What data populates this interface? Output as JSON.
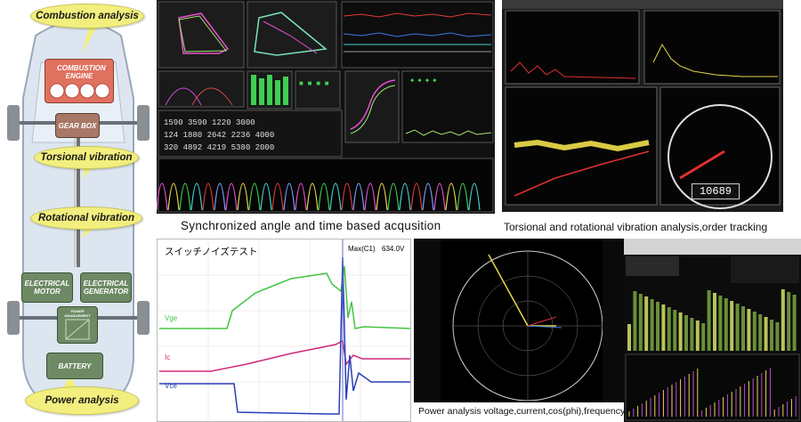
{
  "callouts": {
    "combustion": "Combustion analysis",
    "torsional": "Torsional vibration",
    "rotational": "Rotational vibration",
    "power": "Power analysis"
  },
  "blocks": {
    "engine": "COMBUSTION ENGINE",
    "gearbox": "GEAR BOX",
    "motor": "ELECTRICAL MOTOR",
    "generator": "ELECTRICAL GENERATOR",
    "power_mgmt": "POWER MANAGEMENT",
    "battery": "BATTERY"
  },
  "captions": {
    "sync": "Synchronized angle and time based acqusition",
    "torsional": "Torsional and rotational vibration analysis,order tracking",
    "power": "Power analysis voltage,current,cos(phi),frequency"
  },
  "oscilloscope": {
    "title": "スイッチノイズテスト",
    "marker": "Max(C1)",
    "marker_value": "634.0V",
    "traces": [
      "Vge",
      "Ic",
      "Vce"
    ]
  },
  "gauge": {
    "readout": "10689"
  },
  "colors": {
    "callout": "#f2ef7e",
    "engine": "#e0715e",
    "gearbox": "#a87766",
    "electrical": "#6d8a64",
    "screen_bg": "#0a0a0a"
  }
}
